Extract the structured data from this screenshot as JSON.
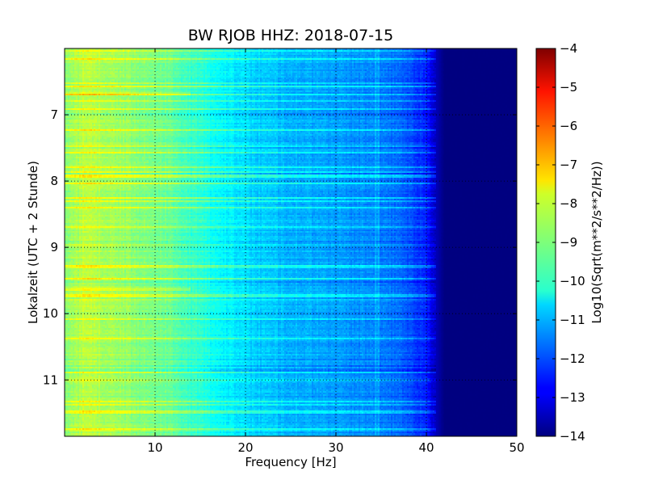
{
  "chart_data": {
    "type": "heatmap",
    "title": "BW RJOB HHZ: 2018-07-15",
    "xlabel": "Frequency [Hz]",
    "ylabel": "Lokalzeit (UTC + 2 Stunde)",
    "xlim": [
      0,
      50
    ],
    "ylim": [
      6.0,
      11.85
    ],
    "y_inverted": true,
    "x_ticks": [
      10,
      20,
      30,
      40,
      50
    ],
    "x_tick_labels": [
      "10",
      "20",
      "30",
      "40",
      "50"
    ],
    "y_ticks": [
      7,
      8,
      9,
      10,
      11
    ],
    "y_tick_labels": [
      "7",
      "8",
      "9",
      "10",
      "11"
    ],
    "grid": true,
    "colormap": "jet",
    "colorbar": {
      "label": "Log10(Sqrt(m**2/s**2/Hz))",
      "min": -14,
      "max": -4,
      "ticks": [
        -4,
        -5,
        -6,
        -7,
        -8,
        -9,
        -10,
        -11,
        -12,
        -13,
        -14
      ],
      "tick_labels": [
        "−4",
        "−5",
        "−6",
        "−7",
        "−8",
        "−9",
        "−10",
        "−11",
        "−12",
        "−13",
        "−14"
      ]
    },
    "spectrum_profile": {
      "frequency_hz": [
        0,
        1,
        2,
        5,
        8,
        11,
        13,
        16,
        20,
        24,
        28,
        32,
        36,
        38,
        40,
        41,
        42,
        50
      ],
      "log10_amplitude": [
        -9.0,
        -8.7,
        -8.4,
        -8.6,
        -8.9,
        -9.1,
        -9.5,
        -10.0,
        -10.6,
        -10.9,
        -11.1,
        -11.3,
        -11.6,
        -11.9,
        -12.4,
        -13.4,
        -14.0,
        -14.0
      ]
    }
  }
}
